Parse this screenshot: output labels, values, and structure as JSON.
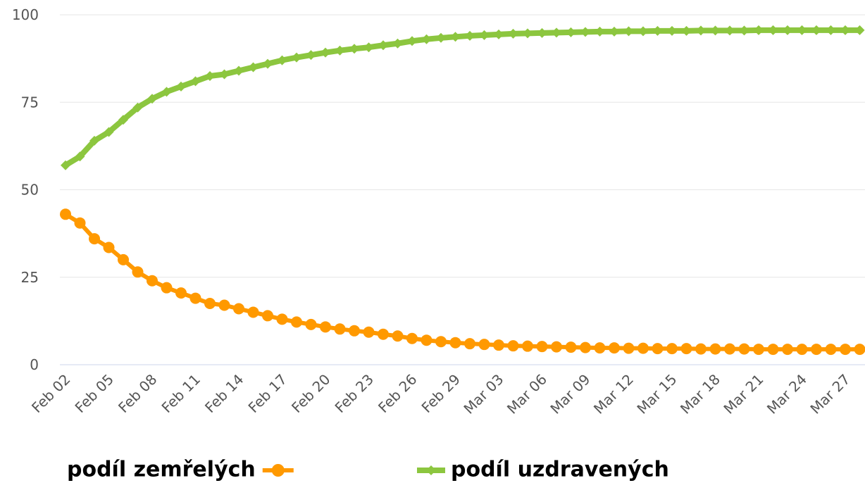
{
  "chart_data": {
    "type": "line",
    "categories": [
      "Feb 02",
      null,
      null,
      "Feb 05",
      null,
      null,
      "Feb 08",
      null,
      null,
      "Feb 11",
      null,
      null,
      "Feb 14",
      null,
      null,
      "Feb 17",
      null,
      null,
      "Feb 20",
      null,
      null,
      "Feb 23",
      null,
      null,
      "Feb 26",
      null,
      null,
      "Feb 29",
      null,
      null,
      "Mar 03",
      null,
      null,
      "Mar 06",
      null,
      null,
      "Mar 09",
      null,
      null,
      "Mar 12",
      null,
      null,
      "Mar 15",
      null,
      null,
      "Mar 18",
      null,
      null,
      "Mar 21",
      null,
      null,
      "Mar 24",
      null,
      null,
      "Mar 27",
      null
    ],
    "series": [
      {
        "name": "podíl zemřelých",
        "color": "#ff9900",
        "values": [
          43,
          40.5,
          36,
          33.5,
          30,
          26.5,
          24,
          22,
          20.5,
          19,
          17.5,
          17,
          16,
          15,
          14,
          13,
          12.2,
          11.5,
          10.8,
          10.2,
          9.7,
          9.3,
          8.7,
          8.2,
          7.5,
          7,
          6.6,
          6.3,
          6,
          5.8,
          5.6,
          5.4,
          5.3,
          5.2,
          5.1,
          5,
          4.9,
          4.8,
          4.8,
          4.7,
          4.7,
          4.6,
          4.6,
          4.6,
          4.5,
          4.5,
          4.5,
          4.5,
          4.4,
          4.4,
          4.4,
          4.4,
          4.4,
          4.4,
          4.4,
          4.4
        ]
      },
      {
        "name": "podíl uzdravených",
        "color": "#8cc63f",
        "values": [
          57,
          59.5,
          64,
          66.5,
          70,
          73.5,
          76,
          78,
          79.5,
          81,
          82.5,
          83,
          84,
          85,
          86,
          87,
          87.8,
          88.5,
          89.2,
          89.8,
          90.3,
          90.7,
          91.3,
          91.8,
          92.5,
          93,
          93.4,
          93.7,
          94,
          94.2,
          94.4,
          94.6,
          94.7,
          94.8,
          94.9,
          95,
          95.1,
          95.2,
          95.2,
          95.3,
          95.3,
          95.4,
          95.4,
          95.4,
          95.5,
          95.5,
          95.5,
          95.5,
          95.6,
          95.6,
          95.6,
          95.6,
          95.6,
          95.6,
          95.6,
          95.6
        ]
      }
    ],
    "ylim": [
      0,
      100
    ],
    "yticks": [
      0,
      25,
      50,
      75,
      100
    ],
    "grid": true
  }
}
